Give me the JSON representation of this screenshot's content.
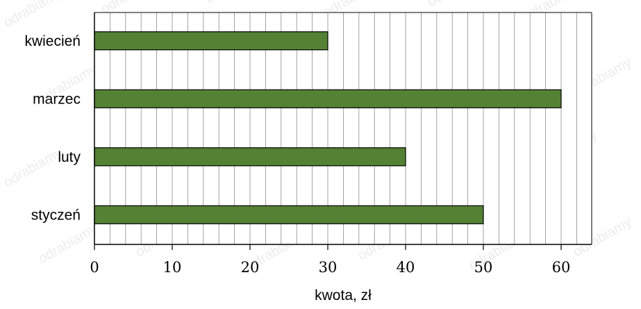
{
  "chart_data": {
    "type": "bar",
    "orientation": "horizontal",
    "categories": [
      "kwiecień",
      "marzec",
      "luty",
      "styczeń"
    ],
    "values": [
      30,
      60,
      40,
      50
    ],
    "title": "",
    "xlabel": "kwota, zł",
    "ylabel": "",
    "xlim": [
      0,
      64
    ],
    "xticks": [
      0,
      10,
      20,
      30,
      40,
      50,
      60
    ],
    "minor_grid_step": 2,
    "grid": true,
    "bar_color": "#548235"
  },
  "watermark": "odrabiamy"
}
